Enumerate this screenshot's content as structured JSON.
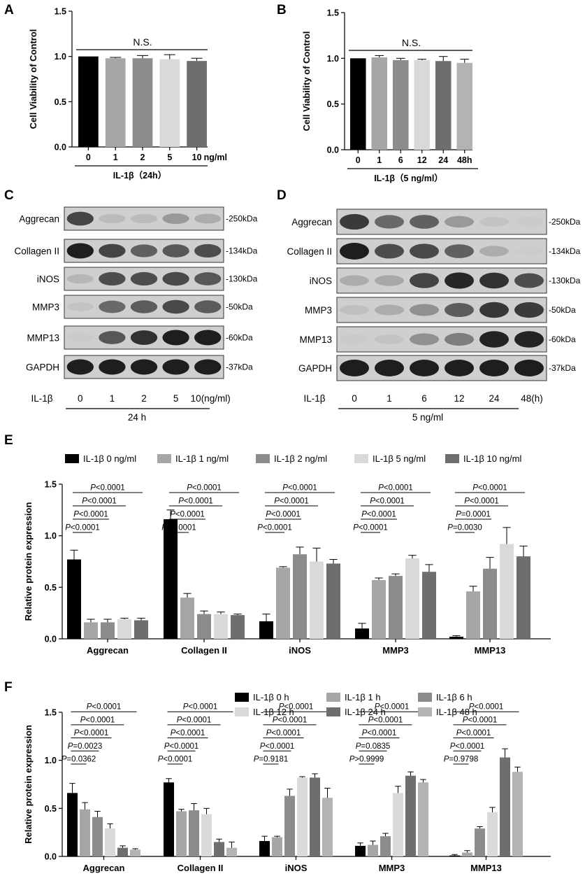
{
  "panels": {
    "A": "A",
    "B": "B",
    "C": "C",
    "D": "D",
    "E": "E",
    "F": "F"
  },
  "colors": {
    "series": [
      "#000000",
      "#a6a6a6",
      "#8c8c8c",
      "#d9d9d9",
      "#6e6e6e",
      "#b3b3b3"
    ],
    "blot_background": "#d2d2d2",
    "band": "#1a1a1a"
  },
  "chart_data": [
    {
      "id": "A",
      "type": "bar",
      "ylabel": "Cell Viability of Control",
      "ylim": [
        0,
        1.5
      ],
      "yticks": [
        "0.0",
        "0.5",
        "1.0",
        "1.5"
      ],
      "categories": [
        "0",
        "1",
        "2",
        "5",
        "10"
      ],
      "unit_label": "ng/ml",
      "group_label": "IL-1β（24h）",
      "values": [
        1.0,
        0.98,
        0.98,
        0.97,
        0.95
      ],
      "errors": [
        0.0,
        0.01,
        0.03,
        0.05,
        0.03
      ],
      "significance": "N.S."
    },
    {
      "id": "B",
      "type": "bar",
      "ylabel": "Cell Viability of Control",
      "ylim": [
        0,
        1.5
      ],
      "yticks": [
        "0.0",
        "0.5",
        "1.0",
        "1.5"
      ],
      "categories": [
        "0",
        "1",
        "6",
        "12",
        "24",
        "48h"
      ],
      "group_label": "IL-1β（5 ng/ml）",
      "values": [
        1.0,
        1.01,
        0.98,
        0.98,
        0.97,
        0.95
      ],
      "errors": [
        0.0,
        0.02,
        0.02,
        0.01,
        0.05,
        0.04
      ],
      "significance": "N.S."
    },
    {
      "id": "E",
      "type": "bar",
      "ylabel": "Relative protein expression",
      "ylim": [
        0,
        1.5
      ],
      "yticks": [
        "0.0",
        "0.5",
        "1.0",
        "1.5"
      ],
      "categories": [
        "Aggrecan",
        "Collagen II",
        "iNOS",
        "MMP3",
        "MMP13"
      ],
      "legend": [
        "IL-1β 0 ng/ml",
        "IL-1β 1 ng/ml",
        "IL-1β 2 ng/ml",
        "IL-1β 5 ng/ml",
        "IL-1β 10 ng/ml"
      ],
      "series": [
        {
          "name": "IL-1β 0 ng/ml",
          "values": [
            0.77,
            1.16,
            0.17,
            0.1,
            0.02
          ],
          "errors": [
            0.09,
            0.09,
            0.07,
            0.05,
            0.01
          ]
        },
        {
          "name": "IL-1β 1 ng/ml",
          "values": [
            0.16,
            0.4,
            0.69,
            0.57,
            0.46
          ],
          "errors": [
            0.03,
            0.04,
            0.01,
            0.02,
            0.05
          ]
        },
        {
          "name": "IL-1β 2 ng/ml",
          "values": [
            0.16,
            0.24,
            0.82,
            0.61,
            0.68
          ],
          "errors": [
            0.03,
            0.03,
            0.07,
            0.02,
            0.11
          ]
        },
        {
          "name": "IL-1β 5 ng/ml",
          "values": [
            0.19,
            0.24,
            0.75,
            0.78,
            0.92
          ],
          "errors": [
            0.01,
            0.02,
            0.13,
            0.03,
            0.16
          ]
        },
        {
          "name": "IL-1β 10 ng/ml",
          "values": [
            0.18,
            0.23,
            0.73,
            0.65,
            0.8
          ],
          "errors": [
            0.02,
            0.01,
            0.04,
            0.07,
            0.1
          ]
        }
      ],
      "annotations": [
        [
          "P<0.0001",
          "P<0.0001",
          "P<0.0001",
          "P<0.0001"
        ],
        [
          "P<0.0001",
          "P<0.0001",
          "P<0.0001",
          "P<0.0001"
        ],
        [
          "P<0.0001",
          "P<0.0001",
          "P<0.0001",
          "P<0.0001"
        ],
        [
          "P<0.0001",
          "P<0.0001",
          "P<0.0001",
          "P<0.0001"
        ],
        [
          "P=0.0030",
          "P=0.0001",
          "P<0.0001",
          "P<0.0001"
        ]
      ]
    },
    {
      "id": "F",
      "type": "bar",
      "ylabel": "Relative protein expression",
      "ylim": [
        0,
        1.5
      ],
      "yticks": [
        "0.0",
        "0.5",
        "1.0",
        "1.5"
      ],
      "categories": [
        "Aggrecan",
        "Collagen II",
        "iNOS",
        "MMP3",
        "MMP13"
      ],
      "legend": [
        "IL-1β 0 h",
        "IL-1β 1 h",
        "IL-1β 6 h",
        "IL-1β 12 h",
        "IL-1β 24 h",
        "IL-1β 48 h"
      ],
      "series": [
        {
          "name": "IL-1β 0 h",
          "values": [
            0.66,
            0.77,
            0.16,
            0.11,
            0.01
          ],
          "errors": [
            0.1,
            0.04,
            0.05,
            0.03,
            0.01
          ]
        },
        {
          "name": "IL-1β 1 h",
          "values": [
            0.49,
            0.47,
            0.2,
            0.12,
            0.04
          ],
          "errors": [
            0.07,
            0.02,
            0.01,
            0.04,
            0.02
          ]
        },
        {
          "name": "IL-1β 6 h",
          "values": [
            0.41,
            0.48,
            0.63,
            0.21,
            0.29
          ],
          "errors": [
            0.06,
            0.07,
            0.07,
            0.03,
            0.02
          ]
        },
        {
          "name": "IL-1β 12 h",
          "values": [
            0.29,
            0.44,
            0.82,
            0.66,
            0.46
          ],
          "errors": [
            0.05,
            0.06,
            0.01,
            0.07,
            0.05
          ]
        },
        {
          "name": "IL-1β 24 h",
          "values": [
            0.09,
            0.15,
            0.82,
            0.84,
            1.03
          ],
          "errors": [
            0.02,
            0.03,
            0.04,
            0.04,
            0.09
          ]
        },
        {
          "name": "IL-1β 48 h",
          "values": [
            0.07,
            0.09,
            0.61,
            0.77,
            0.88
          ],
          "errors": [
            0.01,
            0.06,
            0.1,
            0.03,
            0.05
          ]
        }
      ],
      "annotations": [
        [
          "P=0.0362",
          "P=0.0023",
          "P<0.0001",
          "P<0.0001",
          "P<0.0001"
        ],
        [
          "P<0.0001",
          "P<0.0001",
          "P<0.0001",
          "P<0.0001",
          "P<0.0001"
        ],
        [
          "P=0.9181",
          "P<0.0001",
          "P<0.0001",
          "P<0.0001",
          "P<0.0001"
        ],
        [
          "P>0.9999",
          "P=0.0835",
          "P<0.0001",
          "P<0.0001",
          "P<0.0001"
        ],
        [
          "P=0.9798",
          "P<0.0001",
          "P<0.0001",
          "P<0.0001",
          "P<0.0001"
        ]
      ]
    }
  ],
  "blots": {
    "C": {
      "proteins": [
        "Aggrecan",
        "Collagen II",
        "iNOS",
        "MMP3",
        "MMP13",
        "GAPDH"
      ],
      "sizes": [
        "-250kDa",
        "-134kDa",
        "-130kDa",
        "-50kDa",
        "-60kDa",
        "-37kDa"
      ],
      "treatment": "IL-1β",
      "lanes": [
        "0",
        "1",
        "2",
        "5",
        "10(ng/ml)"
      ],
      "condition": "24 h",
      "intensity": [
        [
          0.75,
          0.12,
          0.12,
          0.3,
          0.2
        ],
        [
          0.95,
          0.75,
          0.6,
          0.65,
          0.7
        ],
        [
          0.15,
          0.7,
          0.7,
          0.72,
          0.65
        ],
        [
          0.08,
          0.55,
          0.62,
          0.72,
          0.62
        ],
        [
          0.04,
          0.65,
          0.85,
          0.95,
          0.95
        ],
        [
          0.95,
          0.95,
          0.95,
          0.95,
          0.95
        ]
      ]
    },
    "D": {
      "proteins": [
        "Aggrecan",
        "Collagen II",
        "iNOS",
        "MMP3",
        "MMP13",
        "GAPDH"
      ],
      "sizes": [
        "-250kDa",
        "-134kDa",
        "-130kDa",
        "-50kDa",
        "-60kDa",
        "-37kDa"
      ],
      "treatment": "IL-1β",
      "lanes": [
        "0",
        "1",
        "6",
        "12",
        "24",
        "48(h)"
      ],
      "condition": "5 ng/ml",
      "intensity": [
        [
          0.8,
          0.55,
          0.6,
          0.3,
          0.08,
          0.04
        ],
        [
          0.95,
          0.7,
          0.72,
          0.6,
          0.2,
          0.03
        ],
        [
          0.2,
          0.22,
          0.75,
          0.9,
          0.85,
          0.7
        ],
        [
          0.1,
          0.2,
          0.35,
          0.62,
          0.82,
          0.8
        ],
        [
          0.04,
          0.08,
          0.35,
          0.45,
          0.92,
          0.92
        ],
        [
          0.95,
          0.95,
          0.95,
          0.95,
          0.95,
          0.95
        ]
      ]
    }
  }
}
